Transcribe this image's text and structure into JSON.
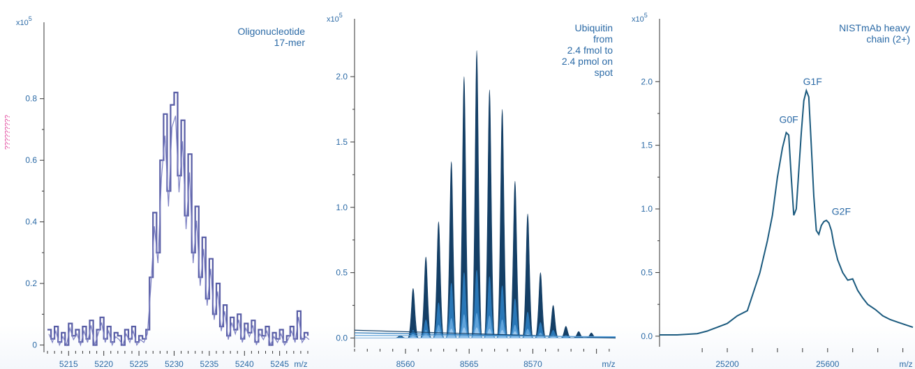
{
  "figure": {
    "ylabel": "?????????"
  },
  "chart_data": [
    {
      "type": "line",
      "title": "Oligonucleotide 17-mer",
      "title_lines": [
        "Oligonucleotide",
        "17-mer"
      ],
      "y_multiplier": "x10",
      "y_exponent": "5",
      "xlabel": "m/z",
      "xlim": [
        5211.5,
        5249
      ],
      "ylim": [
        -0.01,
        1.03
      ],
      "xticks": [
        5215,
        5220,
        5225,
        5230,
        5235,
        5240,
        5245
      ],
      "yticks": [
        0,
        0.2,
        0.4,
        0.6,
        0.8
      ],
      "ytick_labels": [
        "0",
        "0.2",
        "0.4",
        "0.6",
        "0.8"
      ],
      "colors": {
        "line": "#3a3f95",
        "text": "#2b6aa6"
      },
      "series": [
        {
          "x": [
            5212,
            5212.5,
            5213,
            5213.5,
            5214,
            5214.5,
            5215,
            5215.5,
            5216,
            5216.5,
            5217,
            5217.5,
            5218,
            5218.5,
            5219,
            5219.5,
            5220,
            5220.5,
            5221,
            5221.5,
            5222,
            5222.5,
            5223,
            5223.5,
            5224,
            5224.5,
            5225,
            5225.5,
            5226,
            5226.5,
            5227,
            5227.5,
            5228,
            5228.5,
            5229,
            5229.5,
            5230,
            5230.5,
            5231,
            5231.5,
            5232,
            5232.5,
            5233,
            5233.5,
            5234,
            5234.5,
            5235,
            5235.5,
            5236,
            5236.5,
            5237,
            5237.5,
            5238,
            5238.5,
            5239,
            5239.5,
            5240,
            5240.5,
            5241,
            5241.5,
            5242,
            5242.5,
            5243,
            5243.5,
            5244,
            5244.5,
            5245,
            5245.5,
            5246,
            5246.5,
            5247,
            5247.5,
            5248,
            5248.5,
            5249
          ],
          "values": [
            0.05,
            0.02,
            0.06,
            0.01,
            0.04,
            0.0,
            0.07,
            0.03,
            0.05,
            0.01,
            0.06,
            0.02,
            0.08,
            0.0,
            0.05,
            0.09,
            0.02,
            0.06,
            0.01,
            0.04,
            0.03,
            0.0,
            0.05,
            0.02,
            0.06,
            0.01,
            0.03,
            0.02,
            0.05,
            0.22,
            0.43,
            0.3,
            0.6,
            0.75,
            0.5,
            0.78,
            0.82,
            0.55,
            0.73,
            0.42,
            0.62,
            0.3,
            0.45,
            0.22,
            0.35,
            0.15,
            0.28,
            0.1,
            0.2,
            0.06,
            0.13,
            0.03,
            0.09,
            0.05,
            0.1,
            0.02,
            0.07,
            0.04,
            0.08,
            0.01,
            0.05,
            0.03,
            0.06,
            0.0,
            0.04,
            0.02,
            0.05,
            0.01,
            0.03,
            0.06,
            0.02,
            0.11,
            0.02,
            0.04,
            0.03
          ]
        }
      ]
    },
    {
      "type": "area",
      "title": "Ubiquitin from 2.4 fmol to 2.4 pmol on spot",
      "title_lines": [
        "Ubiquitin",
        "from",
        "2.4 fmol to",
        "2.4 pmol on",
        "spot"
      ],
      "y_multiplier": "x10",
      "y_exponent": "5",
      "xlabel": "m/z",
      "xlim": [
        8556,
        8576.5
      ],
      "ylim": [
        -0.04,
        2.4
      ],
      "xticks": [
        8560,
        8565,
        8570
      ],
      "yticks": [
        0.0,
        0.5,
        1.0,
        1.5,
        2.0
      ],
      "ytick_labels": [
        "0.0",
        "0.5",
        "1.0",
        "1.5",
        "2.0"
      ],
      "colors": {
        "text": "#2b6aa6",
        "dark": "#143f66",
        "mid": "#2a78b8",
        "light": "#5fa3db",
        "pale": "#9cc8ee"
      },
      "peak_mz": [
        8559.6,
        8560.6,
        8561.6,
        8562.6,
        8563.6,
        8564.6,
        8565.6,
        8566.6,
        8567.6,
        8568.6,
        8569.6,
        8570.6,
        8571.6,
        8572.6,
        8573.6,
        8574.6
      ],
      "series": [
        {
          "name": "",
          "values": [
            0.02,
            0.38,
            0.62,
            0.89,
            1.35,
            2.0,
            2.2,
            1.9,
            1.75,
            1.2,
            0.95,
            0.5,
            0.25,
            0.09,
            0.05,
            0.04
          ]
        },
        {
          "name": "",
          "values": [
            0.01,
            0.06,
            0.14,
            0.27,
            0.42,
            0.5,
            0.52,
            0.47,
            0.4,
            0.3,
            0.2,
            0.12,
            0.06,
            0.02,
            0.01,
            0.0
          ]
        },
        {
          "name": "",
          "values": [
            0.0,
            0.03,
            0.06,
            0.1,
            0.15,
            0.18,
            0.19,
            0.17,
            0.14,
            0.1,
            0.07,
            0.04,
            0.02,
            0.01,
            0.0,
            0.0
          ]
        },
        {
          "name": "",
          "values": [
            0.0,
            0.01,
            0.03,
            0.05,
            0.07,
            0.08,
            0.08,
            0.07,
            0.06,
            0.05,
            0.03,
            0.02,
            0.01,
            0.0,
            0.0,
            0.0
          ]
        }
      ]
    },
    {
      "type": "line",
      "title": "NISTmAb heavy chain (2+)",
      "title_lines": [
        "NISTmAb heavy",
        "chain (2+)"
      ],
      "y_multiplier": "x10",
      "y_exponent": "5",
      "xlabel": "m/z",
      "xlim": [
        24930,
        25940
      ],
      "ylim": [
        -0.05,
        2.45
      ],
      "xticks": [
        25200,
        25600
      ],
      "minor_xticks": [
        25100,
        25300,
        25400,
        25500,
        25700,
        25800,
        25900
      ],
      "yticks": [
        0.0,
        0.5,
        1.0,
        1.5,
        2.0
      ],
      "ytick_labels": [
        "0.0",
        "0.5",
        "1.0",
        "1.5",
        "2.0"
      ],
      "colors": {
        "line": "#1b5a7e",
        "text": "#2b6aa6"
      },
      "annotations": [
        {
          "text": "G0F",
          "x": 25445,
          "y": 1.62
        },
        {
          "text": "G1F",
          "x": 25540,
          "y": 1.92
        },
        {
          "text": "G2F",
          "x": 25610,
          "y": 0.9
        }
      ],
      "series": [
        {
          "x": [
            24930,
            25000,
            25080,
            25120,
            25160,
            25200,
            25240,
            25280,
            25300,
            25330,
            25360,
            25380,
            25400,
            25420,
            25435,
            25445,
            25455,
            25465,
            25475,
            25485,
            25495,
            25505,
            25515,
            25525,
            25535,
            25545,
            25555,
            25565,
            25575,
            25585,
            25595,
            25605,
            25615,
            25625,
            25640,
            25660,
            25680,
            25700,
            25720,
            25740,
            25760,
            25790,
            25820,
            25850,
            25880,
            25910,
            25940
          ],
          "values": [
            0.01,
            0.01,
            0.02,
            0.04,
            0.07,
            0.1,
            0.16,
            0.2,
            0.32,
            0.5,
            0.75,
            0.95,
            1.25,
            1.48,
            1.6,
            1.58,
            1.25,
            0.95,
            1.0,
            1.3,
            1.6,
            1.85,
            1.93,
            1.88,
            1.5,
            1.1,
            0.83,
            0.8,
            0.87,
            0.9,
            0.91,
            0.89,
            0.83,
            0.72,
            0.6,
            0.5,
            0.44,
            0.45,
            0.36,
            0.3,
            0.25,
            0.21,
            0.16,
            0.13,
            0.11,
            0.09,
            0.07
          ]
        }
      ]
    }
  ]
}
